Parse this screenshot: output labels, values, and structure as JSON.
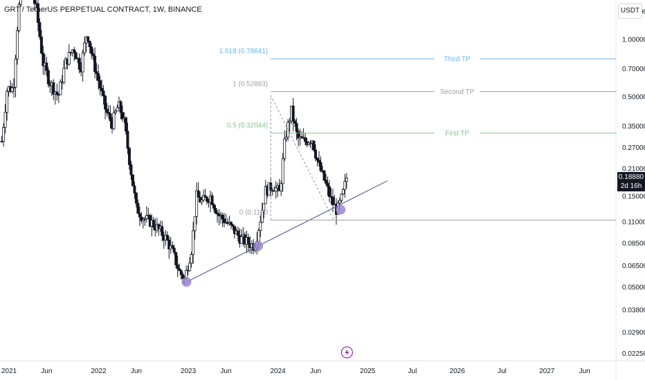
{
  "header": {
    "title": "GRT / TetherUS PERPETUAL CONTRACT, 1W, BINANCE",
    "currency": "USDT"
  },
  "price_tag": {
    "value": "0.18880",
    "countdown": "2d 16h"
  },
  "colors": {
    "up": "#26a69a",
    "down": "#131722",
    "candle": "#131722",
    "trendline": "#5b6a9a",
    "circle": "#9c86d1",
    "fib_third": "#64b5f6",
    "fib_second": "#9e9e9e",
    "fib_first": "#81c784",
    "fib_zero": "#9e9e9e",
    "lightning": "#9c27b0"
  },
  "chart_data": {
    "type": "candlestick",
    "title": "GRT / TetherUS PERPETUAL CONTRACT, 1W, BINANCE",
    "y_scale": "log",
    "ylim": [
      0.0205,
      1.6
    ],
    "y_ticks": [
      {
        "value": 1.4,
        "label": "1.40000"
      },
      {
        "value": 1.0,
        "label": "1.00000"
      },
      {
        "value": 0.7,
        "label": "0.70000"
      },
      {
        "value": 0.5,
        "label": "0.50000"
      },
      {
        "value": 0.35,
        "label": "0.35000"
      },
      {
        "value": 0.27,
        "label": "0.27000"
      },
      {
        "value": 0.21,
        "label": "0.21000"
      },
      {
        "value": 0.15,
        "label": "0.15000"
      },
      {
        "value": 0.11,
        "label": "0.11000"
      },
      {
        "value": 0.085,
        "label": "0.08500"
      },
      {
        "value": 0.065,
        "label": "0.06500"
      },
      {
        "value": 0.05,
        "label": "0.05000"
      },
      {
        "value": 0.038,
        "label": "0.03800"
      },
      {
        "value": 0.029,
        "label": "0.02900"
      },
      {
        "value": 0.0225,
        "label": "0.02250"
      }
    ],
    "x_ticks": [
      {
        "label": "2021",
        "t": 2021.0
      },
      {
        "label": "Jun",
        "t": 2021.42
      },
      {
        "label": "2022",
        "t": 2022.0
      },
      {
        "label": "Jun",
        "t": 2022.42
      },
      {
        "label": "2023",
        "t": 2023.0
      },
      {
        "label": "Jun",
        "t": 2023.42
      },
      {
        "label": "2024",
        "t": 2024.0
      },
      {
        "label": "Jun",
        "t": 2024.42
      },
      {
        "label": "2025",
        "t": 2025.0
      },
      {
        "label": "Jul",
        "t": 2025.5
      },
      {
        "label": "2026",
        "t": 2026.0
      },
      {
        "label": "Jul",
        "t": 2026.5
      },
      {
        "label": "2027",
        "t": 2027.0
      },
      {
        "label": "Jun",
        "t": 2027.42
      }
    ],
    "xlim": [
      2020.9,
      2027.77
    ],
    "anchors": [
      {
        "t": 2020.92,
        "p": 0.29
      },
      {
        "t": 2020.98,
        "p": 0.55
      },
      {
        "t": 2021.05,
        "p": 0.55
      },
      {
        "t": 2021.1,
        "p": 1.3
      },
      {
        "t": 2021.15,
        "p": 2.2
      },
      {
        "t": 2021.22,
        "p": 1.8
      },
      {
        "t": 2021.3,
        "p": 1.5
      },
      {
        "t": 2021.38,
        "p": 0.75
      },
      {
        "t": 2021.45,
        "p": 0.6
      },
      {
        "t": 2021.55,
        "p": 0.5
      },
      {
        "t": 2021.63,
        "p": 0.75
      },
      {
        "t": 2021.72,
        "p": 0.9
      },
      {
        "t": 2021.8,
        "p": 0.7
      },
      {
        "t": 2021.87,
        "p": 1.1
      },
      {
        "t": 2021.93,
        "p": 0.8
      },
      {
        "t": 2022.0,
        "p": 0.6
      },
      {
        "t": 2022.08,
        "p": 0.42
      },
      {
        "t": 2022.15,
        "p": 0.36
      },
      {
        "t": 2022.22,
        "p": 0.45
      },
      {
        "t": 2022.28,
        "p": 0.38
      },
      {
        "t": 2022.35,
        "p": 0.22
      },
      {
        "t": 2022.42,
        "p": 0.13
      },
      {
        "t": 2022.5,
        "p": 0.115
      },
      {
        "t": 2022.58,
        "p": 0.11
      },
      {
        "t": 2022.67,
        "p": 0.1
      },
      {
        "t": 2022.75,
        "p": 0.09
      },
      {
        "t": 2022.83,
        "p": 0.075
      },
      {
        "t": 2022.9,
        "p": 0.06
      },
      {
        "t": 2022.96,
        "p": 0.055
      },
      {
        "t": 2023.04,
        "p": 0.08
      },
      {
        "t": 2023.09,
        "p": 0.15
      },
      {
        "t": 2023.15,
        "p": 0.14
      },
      {
        "t": 2023.25,
        "p": 0.15
      },
      {
        "t": 2023.33,
        "p": 0.12
      },
      {
        "t": 2023.42,
        "p": 0.11
      },
      {
        "t": 2023.5,
        "p": 0.1
      },
      {
        "t": 2023.58,
        "p": 0.09
      },
      {
        "t": 2023.67,
        "p": 0.085
      },
      {
        "t": 2023.74,
        "p": 0.082
      },
      {
        "t": 2023.8,
        "p": 0.11
      },
      {
        "t": 2023.86,
        "p": 0.16
      },
      {
        "t": 2023.95,
        "p": 0.17
      },
      {
        "t": 2024.02,
        "p": 0.155
      },
      {
        "t": 2024.08,
        "p": 0.3
      },
      {
        "t": 2024.15,
        "p": 0.42
      },
      {
        "t": 2024.22,
        "p": 0.3
      },
      {
        "t": 2024.3,
        "p": 0.29
      },
      {
        "t": 2024.38,
        "p": 0.3
      },
      {
        "t": 2024.45,
        "p": 0.22
      },
      {
        "t": 2024.52,
        "p": 0.18
      },
      {
        "t": 2024.6,
        "p": 0.14
      },
      {
        "t": 2024.66,
        "p": 0.125
      },
      {
        "t": 2024.72,
        "p": 0.15
      },
      {
        "t": 2024.77,
        "p": 0.19
      }
    ],
    "trendline": {
      "t1": 2022.98,
      "p1": 0.053,
      "t2": 2025.22,
      "p2": 0.18
    },
    "marked_lows": [
      {
        "t": 2022.98,
        "p": 0.053
      },
      {
        "t": 2023.78,
        "p": 0.082
      },
      {
        "t": 2024.7,
        "p": 0.127
      }
    ],
    "fib_levels": [
      {
        "ratio_label": "1.618 (0.78641)",
        "value": 0.78641,
        "tp_label": "Third TP",
        "color_key": "fib_third"
      },
      {
        "ratio_label": "1 (0.52883)",
        "value": 0.52883,
        "tp_label": "Second TP",
        "color_key": "fib_second"
      },
      {
        "ratio_label": "0.5 (0.32044)",
        "value": 0.32044,
        "tp_label": "First TP",
        "color_key": "fib_first"
      },
      {
        "ratio_label": "0 (0.1120",
        "value": 0.112,
        "tp_label": "",
        "color_key": "fib_zero"
      }
    ],
    "fib_lines_t_start": 2023.92,
    "zigzag": [
      {
        "t": 2023.92,
        "p": 0.112
      },
      {
        "t": 2023.92,
        "p": 0.505
      },
      {
        "t": 2024.62,
        "p": 0.112
      }
    ],
    "last_price": 0.1888
  }
}
